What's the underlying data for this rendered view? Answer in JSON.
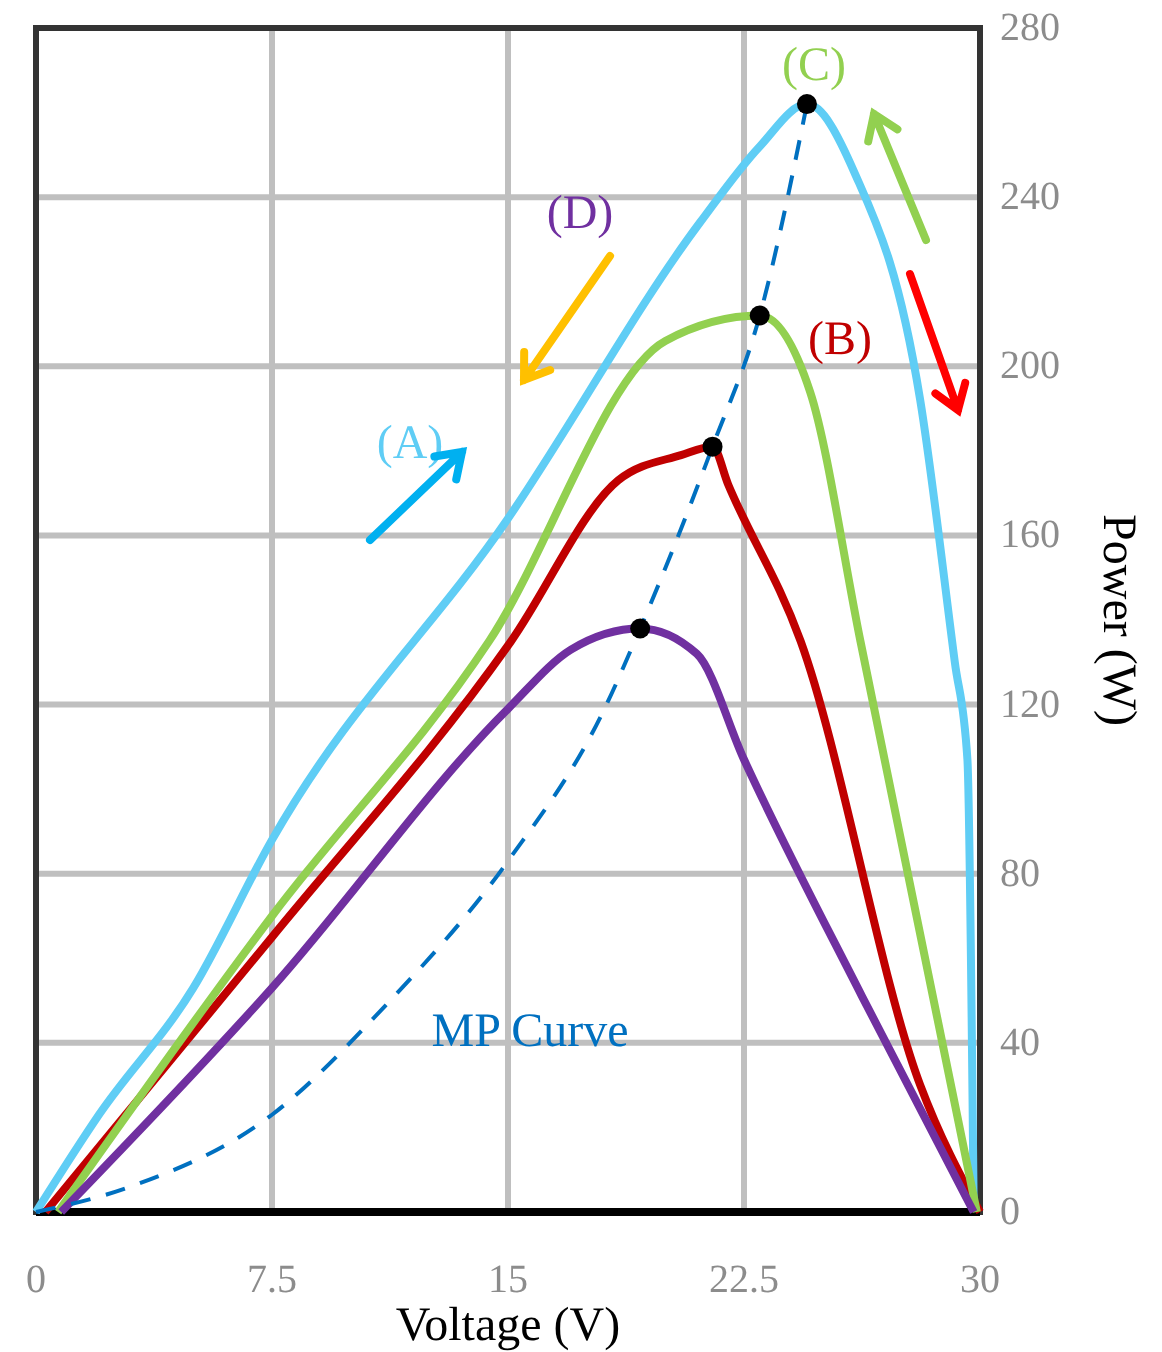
{
  "chart_data": {
    "type": "line",
    "xlabel": "Voltage (V)",
    "ylabel": "Power (W)",
    "xlim": [
      0,
      30
    ],
    "xticks": [
      0,
      7.5,
      15,
      22.5,
      30
    ],
    "ylim": [
      0,
      280
    ],
    "yticks": [
      0,
      40,
      80,
      120,
      160,
      200,
      240,
      280
    ],
    "grid": true,
    "marker": "none",
    "series": [
      {
        "color": "#5fcdf5",
        "x": [
          0,
          2,
          5,
          7.5,
          15,
          21.1,
          23,
          24.5,
          26,
          28.1,
          29.2,
          29.6,
          29.8
        ],
        "values": [
          0,
          23,
          53,
          88,
          164,
          234,
          252,
          262,
          246,
          192,
          130,
          107,
          0
        ]
      },
      {
        "color": "#c00000",
        "x": [
          0.3,
          7.5,
          15.1,
          18.5,
          20.5,
          21.5,
          22,
          24.3,
          28.1,
          30
        ],
        "values": [
          0,
          65,
          135,
          173,
          179,
          181,
          172,
          135,
          30,
          0
        ]
      },
      {
        "color": "#92d050",
        "x": [
          0.7,
          7.5,
          14.4,
          20,
          23,
          24.6,
          26.2,
          29.9
        ],
        "values": [
          0,
          70,
          135,
          206,
          212,
          194,
          135,
          0
        ]
      },
      {
        "color": "#7030a0",
        "x": [
          0.8,
          7.5,
          15,
          17,
          19.2,
          21,
          22.5,
          26.25,
          29.8
        ],
        "values": [
          0,
          53,
          119,
          133,
          138,
          132,
          107,
          51,
          0
        ]
      },
      {
        "color": "#0070c0",
        "line_style": "dashed",
        "x": [
          0,
          3,
          7.5,
          11,
          15,
          18,
          19.2,
          21.5,
          23,
          24.5
        ],
        "values": [
          0,
          6,
          23,
          48,
          83,
          118,
          138,
          181,
          212,
          262
        ]
      },
      {
        "type": "scatter",
        "color": "#000000",
        "marker": "circle",
        "x": [
          19.2,
          21.5,
          23,
          24.5
        ],
        "values": [
          138,
          181,
          212,
          262
        ]
      }
    ],
    "annotations": [
      "(A)",
      "(B)",
      "(C)",
      "(D)",
      "MP Curve"
    ]
  }
}
